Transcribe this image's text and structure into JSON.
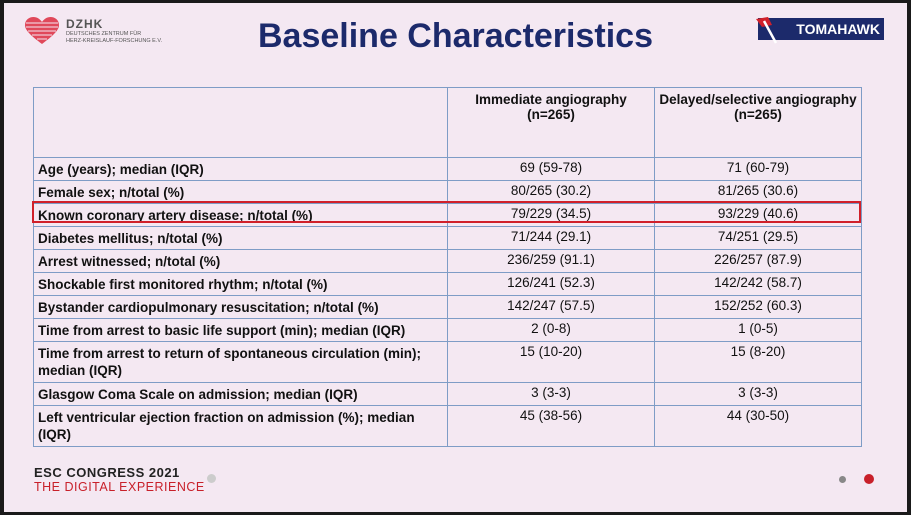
{
  "header": {
    "title": "Baseline Characteristics",
    "logo_left": {
      "name": "DZHK",
      "line1": "DEUTSCHES ZENTRUM FÜR",
      "line2": "HERZ-KREISLAUF-FORSCHUNG E.V."
    },
    "logo_right": "TOMAHAWK"
  },
  "table": {
    "columns": [
      {
        "name": "Immediate angiography",
        "n": "(n=265)"
      },
      {
        "name": "Delayed/selective angiography",
        "n": "(n=265)"
      }
    ],
    "rows": [
      [
        "Age (years); median (IQR)",
        "69 (59-78)",
        "71 (60-79)"
      ],
      [
        "Female sex; n/total (%)",
        "80/265 (30.2)",
        "81/265 (30.6)"
      ],
      [
        "Known coronary artery disease; n/total (%)",
        "79/229 (34.5)",
        "93/229 (40.6)"
      ],
      [
        "Diabetes mellitus; n/total (%)",
        "71/244 (29.1)",
        "74/251 (29.5)"
      ],
      [
        "Arrest witnessed; n/total (%)",
        "236/259 (91.1)",
        "226/257 (87.9)"
      ],
      [
        "Shockable first monitored rhythm; n/total (%)",
        "126/241 (52.3)",
        "142/242 (58.7)"
      ],
      [
        "Bystander cardiopulmonary resuscitation; n/total (%)",
        "142/247 (57.5)",
        "152/252 (60.3)"
      ],
      [
        "Time from arrest to basic life support (min); median (IQR)",
        "2 (0-8)",
        "1 (0-5)"
      ],
      [
        "Time from arrest to return of spontaneous circulation (min); median (IQR)",
        "15 (10-20)",
        "15 (8-20)"
      ],
      [
        "Glasgow Coma Scale on admission; median (IQR)",
        "3 (3-3)",
        "3 (3-3)"
      ],
      [
        "Left ventricular ejection fraction on admission (%); median (IQR)",
        "45 (38-56)",
        "44 (30-50)"
      ]
    ]
  },
  "footer": {
    "line1": "ESC CONGRESS 2021",
    "line2": "THE DIGITAL EXPERIENCE"
  }
}
